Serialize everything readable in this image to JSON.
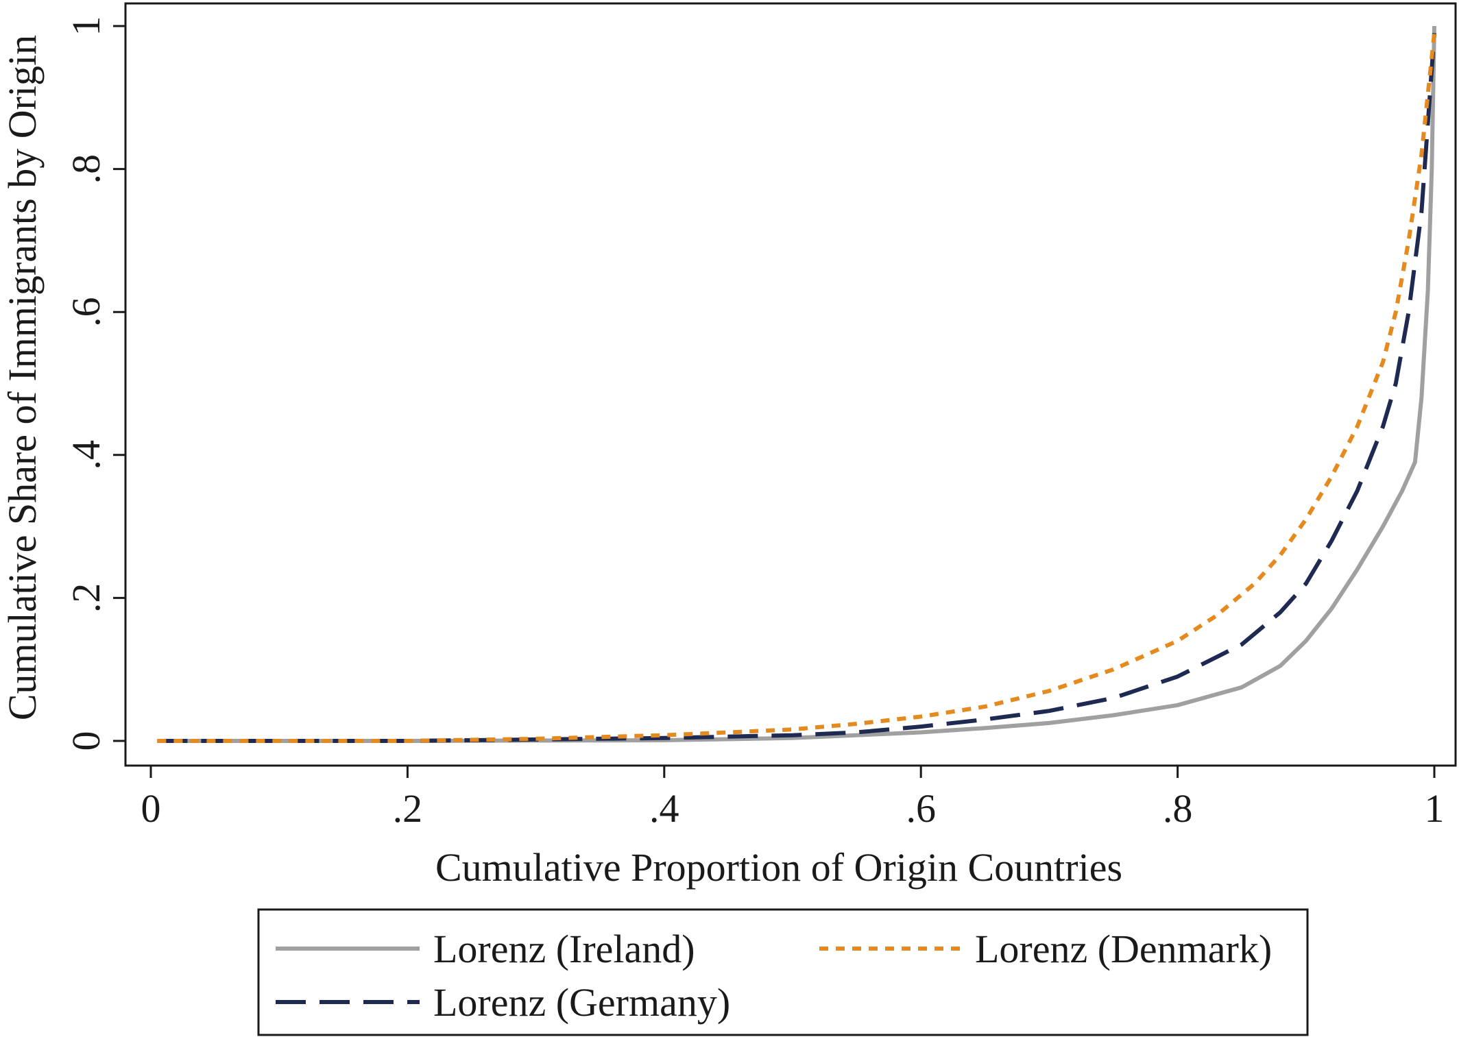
{
  "chart_data": {
    "type": "line",
    "xlabel": "Cumulative Proportion of Origin Countries",
    "ylabel": "Cumulative Share of Immigrants by Origin",
    "xlim": [
      0,
      1
    ],
    "ylim": [
      0,
      1
    ],
    "x_ticks": [
      0,
      0.2,
      0.4,
      0.6,
      0.8,
      1
    ],
    "x_tick_labels": [
      "0",
      ".2",
      ".4",
      ".6",
      ".8",
      "1"
    ],
    "y_ticks": [
      0,
      0.2,
      0.4,
      0.6,
      0.8,
      1
    ],
    "y_tick_labels": [
      "0",
      ".2",
      ".4",
      ".6",
      ".8",
      "1"
    ],
    "grid": false,
    "legend_position": "bottom",
    "series": [
      {
        "name": "Lorenz (Ireland)",
        "color": "#a0a0a0",
        "style": "solid",
        "points": [
          [
            0.005,
            0.0
          ],
          [
            0.2,
            0.0
          ],
          [
            0.4,
            0.001
          ],
          [
            0.5,
            0.004
          ],
          [
            0.6,
            0.012
          ],
          [
            0.65,
            0.018
          ],
          [
            0.7,
            0.025
          ],
          [
            0.75,
            0.036
          ],
          [
            0.8,
            0.05
          ],
          [
            0.85,
            0.075
          ],
          [
            0.88,
            0.105
          ],
          [
            0.9,
            0.14
          ],
          [
            0.92,
            0.185
          ],
          [
            0.94,
            0.24
          ],
          [
            0.96,
            0.3
          ],
          [
            0.975,
            0.35
          ],
          [
            0.985,
            0.39
          ],
          [
            0.99,
            0.48
          ],
          [
            0.995,
            0.63
          ],
          [
            0.998,
            0.8
          ],
          [
            1.0,
            1.0
          ]
        ]
      },
      {
        "name": "Lorenz (Germany)",
        "color": "#1e2a52",
        "style": "longdash",
        "points": [
          [
            0.005,
            0.0
          ],
          [
            0.2,
            0.0
          ],
          [
            0.4,
            0.004
          ],
          [
            0.5,
            0.008
          ],
          [
            0.55,
            0.012
          ],
          [
            0.6,
            0.02
          ],
          [
            0.65,
            0.03
          ],
          [
            0.7,
            0.042
          ],
          [
            0.75,
            0.06
          ],
          [
            0.8,
            0.09
          ],
          [
            0.85,
            0.135
          ],
          [
            0.88,
            0.18
          ],
          [
            0.9,
            0.22
          ],
          [
            0.92,
            0.28
          ],
          [
            0.94,
            0.35
          ],
          [
            0.96,
            0.44
          ],
          [
            0.97,
            0.5
          ],
          [
            0.98,
            0.6
          ],
          [
            0.99,
            0.74
          ],
          [
            1.0,
            0.99
          ]
        ]
      },
      {
        "name": "Lorenz (Denmark)",
        "color": "#e58a1f",
        "style": "dotted",
        "points": [
          [
            0.005,
            0.0
          ],
          [
            0.2,
            0.0
          ],
          [
            0.3,
            0.003
          ],
          [
            0.4,
            0.008
          ],
          [
            0.5,
            0.016
          ],
          [
            0.55,
            0.024
          ],
          [
            0.6,
            0.034
          ],
          [
            0.65,
            0.048
          ],
          [
            0.7,
            0.07
          ],
          [
            0.75,
            0.1
          ],
          [
            0.8,
            0.14
          ],
          [
            0.83,
            0.175
          ],
          [
            0.86,
            0.22
          ],
          [
            0.88,
            0.26
          ],
          [
            0.9,
            0.31
          ],
          [
            0.92,
            0.37
          ],
          [
            0.94,
            0.44
          ],
          [
            0.96,
            0.53
          ],
          [
            0.97,
            0.6
          ],
          [
            0.98,
            0.7
          ],
          [
            0.99,
            0.82
          ],
          [
            1.0,
            0.99
          ]
        ]
      }
    ]
  }
}
